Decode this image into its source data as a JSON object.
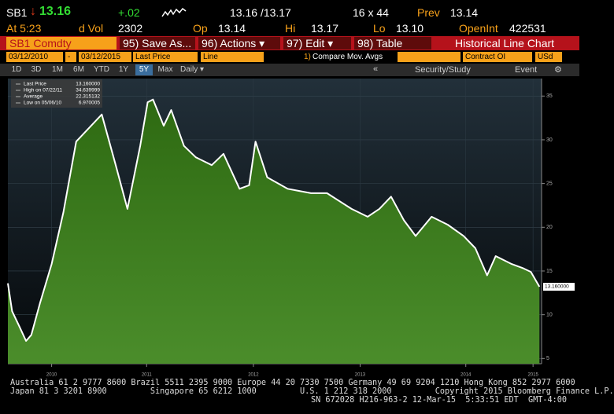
{
  "header": {
    "ticker": "SB1",
    "direction": "↓",
    "last": "13.16",
    "change": "+.02",
    "bid_ask": "13.16 /13.17",
    "size": "16 x 44",
    "prev_label": "Prev",
    "prev": "13.14",
    "time": "At 5:23",
    "vol_label": "d Vol",
    "vol": "2302",
    "open_label": "Op",
    "open": "13.14",
    "hi_label": "Hi",
    "hi": "13.17",
    "lo_label": "Lo",
    "lo": "13.10",
    "oi_label": "OpenInt",
    "oi": "422531"
  },
  "toolbar": {
    "security": "SB1 Comdty",
    "buttons": [
      "95) Save As...",
      "96) Actions ▾",
      "97) Edit ▾",
      "98) Table"
    ],
    "title": "Historical Line Chart"
  },
  "controls": {
    "start_date": "03/12/2010",
    "separator": "-",
    "end_date": "03/12/2015",
    "field": "Last Price",
    "style": "Line",
    "compare_number": "1)",
    "compare": "Compare Mov. Avgs",
    "lower": "Contract OI",
    "currency": "USd"
  },
  "periods": [
    "1D",
    "3D",
    "1M",
    "6M",
    "YTD",
    "1Y",
    "5Y",
    "Max"
  ],
  "active_period_index": 6,
  "frequency": "Daily ▾",
  "nav": {
    "back": "«",
    "study": "Security/Study",
    "event": "Event"
  },
  "chart_data": {
    "type": "area",
    "x": [
      2010.19,
      2010.23,
      2010.3,
      2010.36,
      2010.41,
      2010.49,
      2010.6,
      2010.71,
      2010.83,
      2011.07,
      2011.2,
      2011.31,
      2011.43,
      2011.5,
      2011.55,
      2011.65,
      2011.72,
      2011.84,
      2011.95,
      2012.1,
      2012.21,
      2012.36,
      2012.45,
      2012.51,
      2012.62,
      2012.81,
      2013.03,
      2013.18,
      2013.41,
      2013.56,
      2013.67,
      2013.78,
      2013.9,
      2014.01,
      2014.16,
      2014.31,
      2014.46,
      2014.57,
      2014.68,
      2014.76,
      2014.91,
      2015.02,
      2015.09,
      2015.17
    ],
    "series": [
      {
        "name": "Last Price",
        "color": "#ffffff",
        "fill": "#3f7f1f",
        "values": [
          13.6,
          10.4,
          8.6,
          7.0,
          7.7,
          11.3,
          15.8,
          21.7,
          29.8,
          32.9,
          27.1,
          22.1,
          29.3,
          34.3,
          34.6,
          31.6,
          33.4,
          29.3,
          28.0,
          27.1,
          28.4,
          24.4,
          24.8,
          29.8,
          25.7,
          24.4,
          23.9,
          23.9,
          22.1,
          21.2,
          22.1,
          23.5,
          20.8,
          19.0,
          21.2,
          20.3,
          19.0,
          17.6,
          14.5,
          16.7,
          15.8,
          15.3,
          14.9,
          13.2
        ]
      }
    ],
    "xlim": [
      2010.19,
      2015.19
    ],
    "xticks": [
      {
        "value": 2010.6,
        "label": "2010"
      },
      {
        "value": 2011.49,
        "label": "2011"
      },
      {
        "value": 2012.49,
        "label": "2012"
      },
      {
        "value": 2013.49,
        "label": "2013"
      },
      {
        "value": 2014.48,
        "label": "2014"
      },
      {
        "value": 2015.11,
        "label": "2015"
      }
    ],
    "ylim": [
      4.4,
      37
    ],
    "yticks": [
      5,
      10,
      15,
      20,
      25,
      30,
      35
    ],
    "grid": true,
    "stats": [
      {
        "label": "Last Price",
        "value": "13.160000"
      },
      {
        "label": "High on 07/22/11",
        "value": "34.639999"
      },
      {
        "label": "Average",
        "value": "22.315132"
      },
      {
        "label": "Low on 05/06/10",
        "value": "6.970005"
      }
    ]
  },
  "footer": [
    "Australia 61 2 9777 8600 Brazil 5511 2395 9000 Europe 44 20 7330 7500 Germany 49 69 9204 1210 Hong Kong 852 2977 6000",
    "Japan 81 3 3201 8900         Singapore 65 6212 1000         U.S. 1 212 318 2000         Copyright 2015 Bloomberg Finance L.P.",
    "SN 672028 H216-963-2 12-Mar-15  5:33:51 EDT  GMT-4:00"
  ]
}
